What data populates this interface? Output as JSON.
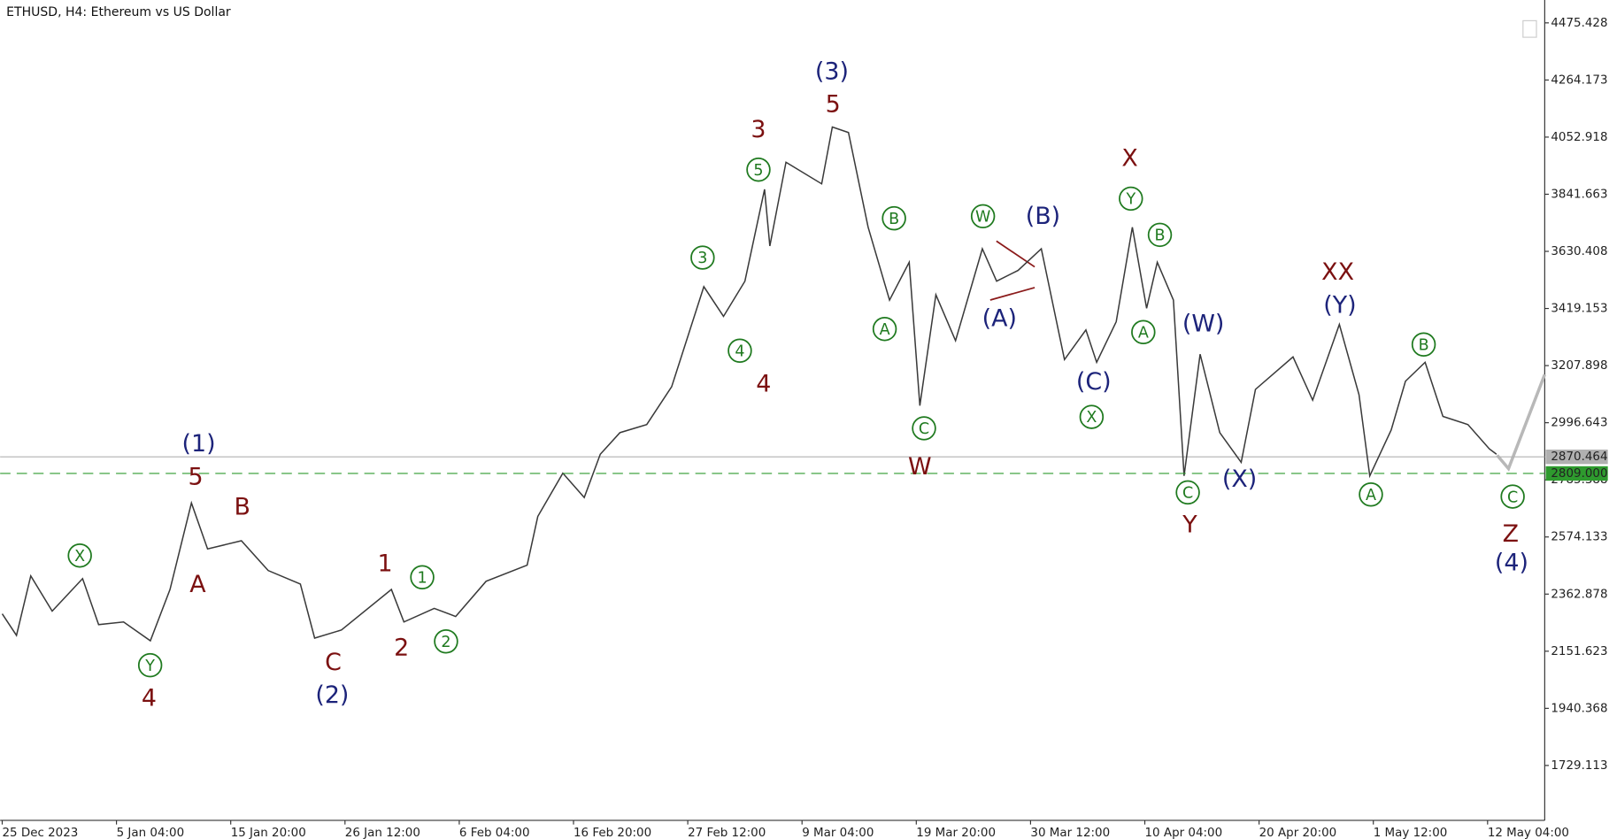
{
  "chart_data": {
    "type": "line",
    "title": "ETHUSD, H4:  Ethereum vs US Dollar",
    "color": "#3a3a3a",
    "x": [
      0,
      8,
      16,
      28,
      45,
      54,
      68,
      83,
      94,
      106,
      115,
      134,
      149,
      167,
      175,
      190,
      218,
      225,
      242,
      254,
      271,
      294,
      300,
      314,
      326,
      335,
      346,
      361,
      375,
      393,
      404,
      416,
      427,
      430,
      439,
      459,
      465,
      474,
      485,
      497,
      508,
      514,
      523,
      534,
      549,
      557,
      569,
      582,
      595,
      607,
      613,
      624,
      633,
      641,
      647,
      656,
      662,
      671,
      682,
      694,
      702,
      723,
      734,
      749,
      760,
      766,
      778,
      786,
      797,
      807,
      821,
      833,
      837
    ],
    "values": [
      2290,
      2210,
      2430,
      2300,
      2420,
      2250,
      2260,
      2190,
      2380,
      2700,
      2530,
      2560,
      2450,
      2400,
      2200,
      2230,
      2380,
      2260,
      2310,
      2280,
      2410,
      2470,
      2650,
      2810,
      2720,
      2880,
      2960,
      2990,
      3130,
      3500,
      3390,
      3520,
      3860,
      3650,
      3960,
      3880,
      4090,
      4070,
      3720,
      3450,
      3590,
      3060,
      3470,
      3300,
      3640,
      3520,
      3560,
      3640,
      3230,
      3340,
      3220,
      3370,
      3720,
      3420,
      3590,
      3450,
      2800,
      3250,
      2960,
      2850,
      3120,
      3240,
      3080,
      3360,
      3100,
      2800,
      2970,
      3150,
      3220,
      3020,
      2990,
      2900,
      2880
    ],
    "xlim": [
      0,
      864
    ],
    "xticks": [
      {
        "value": 0,
        "label": "25 Dec 2023"
      },
      {
        "value": 64,
        "label": "5 Jan 04:00"
      },
      {
        "value": 128,
        "label": "15 Jan 20:00"
      },
      {
        "value": 192,
        "label": "26 Jan 12:00"
      },
      {
        "value": 256,
        "label": "6 Feb 04:00"
      },
      {
        "value": 320,
        "label": "16 Feb 20:00"
      },
      {
        "value": 384,
        "label": "27 Feb 12:00"
      },
      {
        "value": 448,
        "label": "9 Mar 04:00"
      },
      {
        "value": 512,
        "label": "19 Mar 20:00"
      },
      {
        "value": 576,
        "label": "30 Mar 12:00"
      },
      {
        "value": 640,
        "label": "10 Apr 04:00"
      },
      {
        "value": 704,
        "label": "20 Apr 20:00"
      },
      {
        "value": 768,
        "label": "1 May 12:00"
      },
      {
        "value": 832,
        "label": "12 May 04:00"
      }
    ],
    "ylim": [
      1526,
      4560
    ],
    "yticks": [
      1729.113,
      1940.368,
      2151.623,
      2362.878,
      2574.133,
      2785.388,
      2996.643,
      3207.898,
      3419.153,
      3630.408,
      3841.663,
      4052.918,
      4264.173,
      4475.428
    ],
    "price_line": {
      "value": 2870.464,
      "label": "2870.464",
      "color": "#b0b0b0"
    },
    "level_line": {
      "value": 2809,
      "label": "2809.000",
      "color": "#2e9a2e"
    },
    "annotations": [
      {
        "text": "(1)",
        "color": "#1c237a"
      },
      {
        "text": "5",
        "color": "#7b1010"
      },
      {
        "text": "B",
        "color": "#7b1010"
      },
      {
        "text": "A",
        "color": "#7b1010"
      },
      {
        "text": "X",
        "color": "#1f7a1f",
        "circled": true
      },
      {
        "text": "Y",
        "color": "#1f7a1f",
        "circled": true
      },
      {
        "text": "4",
        "color": "#7b1010"
      },
      {
        "text": "C",
        "color": "#7b1010"
      },
      {
        "text": "(2)",
        "color": "#1c237a"
      },
      {
        "text": "1",
        "color": "#7b1010"
      },
      {
        "text": "1",
        "color": "#1f7a1f",
        "circled": true
      },
      {
        "text": "2",
        "color": "#7b1010"
      },
      {
        "text": "2",
        "color": "#1f7a1f",
        "circled": true
      },
      {
        "text": "3",
        "color": "#1f7a1f",
        "circled": true
      },
      {
        "text": "4",
        "color": "#1f7a1f",
        "circled": true
      },
      {
        "text": "4",
        "color": "#7b1010"
      },
      {
        "text": "5",
        "color": "#1f7a1f",
        "circled": true
      },
      {
        "text": "3",
        "color": "#7b1010"
      },
      {
        "text": "(3)",
        "color": "#1c237a"
      },
      {
        "text": "5",
        "color": "#7b1010"
      },
      {
        "text": "B",
        "color": "#1f7a1f",
        "circled": true
      },
      {
        "text": "A",
        "color": "#1f7a1f",
        "circled": true
      },
      {
        "text": "C",
        "color": "#1f7a1f",
        "circled": true
      },
      {
        "text": "W",
        "color": "#7b1010"
      },
      {
        "text": "W",
        "color": "#1f7a1f",
        "circled": true
      },
      {
        "text": "(A)",
        "color": "#1c237a"
      },
      {
        "text": "(B)",
        "color": "#1c237a"
      },
      {
        "text": "(C)",
        "color": "#1c237a"
      },
      {
        "text": "X",
        "color": "#1f7a1f",
        "circled": true
      },
      {
        "text": "X",
        "color": "#7b1010"
      },
      {
        "text": "Y",
        "color": "#1f7a1f",
        "circled": true
      },
      {
        "text": "B",
        "color": "#1f7a1f",
        "circled": true
      },
      {
        "text": "A",
        "color": "#1f7a1f",
        "circled": true
      },
      {
        "text": "(W)",
        "color": "#1c237a"
      },
      {
        "text": "C",
        "color": "#1f7a1f",
        "circled": true
      },
      {
        "text": "Y",
        "color": "#7b1010"
      },
      {
        "text": "(X)",
        "color": "#1c237a"
      },
      {
        "text": "XX",
        "color": "#7b1010"
      },
      {
        "text": "(Y)",
        "color": "#1c237a"
      },
      {
        "text": "B",
        "color": "#1f7a1f",
        "circled": true
      },
      {
        "text": "A",
        "color": "#1f7a1f",
        "circled": true
      },
      {
        "text": "C",
        "color": "#1f7a1f",
        "circled": true
      },
      {
        "text": "Z",
        "color": "#7b1010"
      },
      {
        "text": "(4)",
        "color": "#1c237a"
      }
    ]
  }
}
